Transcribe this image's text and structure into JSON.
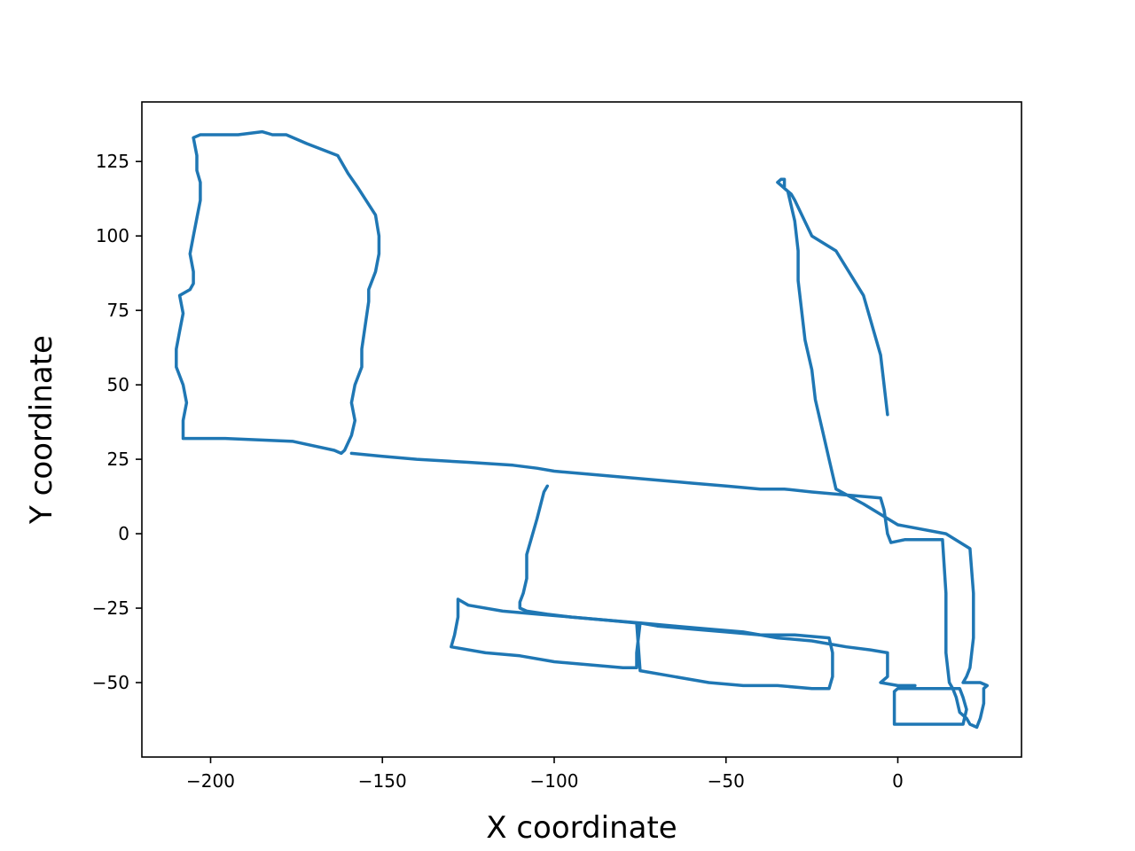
{
  "chart_data": {
    "type": "line",
    "xlabel": "X coordinate",
    "ylabel": "Y coordinate",
    "xlim": [
      -220,
      36
    ],
    "ylim": [
      -75,
      145
    ],
    "x_ticks": [
      -200,
      -150,
      -100,
      -50,
      0
    ],
    "x_tick_labels": [
      "−200",
      "−150",
      "−100",
      "−50",
      "0"
    ],
    "y_ticks": [
      125,
      100,
      75,
      50,
      25,
      0,
      -25,
      -50
    ],
    "y_tick_labels": [
      "125",
      "100",
      "75",
      "50",
      "25",
      "0",
      "−25",
      "−50"
    ],
    "grid": false,
    "series": [
      {
        "color": "#1f77b4",
        "x": [
          -208,
          -208,
          -207,
          -208,
          -210,
          -210,
          -209,
          -208,
          -209,
          -206,
          -205,
          -205,
          -206,
          -205,
          -204,
          -203,
          -203,
          -204,
          -204,
          -205,
          -203,
          -203,
          -202,
          -202,
          -198,
          -192,
          -185,
          -182,
          -181,
          -182,
          -181,
          -181,
          -178,
          -172,
          -163,
          -160,
          -157,
          -152,
          -151,
          -151,
          -152,
          -154,
          -154,
          -155,
          -156,
          -156,
          -158,
          -159,
          -158,
          -159,
          -161,
          -162,
          -164,
          -176,
          -196,
          -208
        ],
        "y": [
          32,
          38,
          44,
          50,
          56,
          62,
          68,
          74,
          80,
          82,
          84,
          88,
          94,
          100,
          106,
          112,
          118,
          122,
          127,
          133,
          134,
          134,
          134,
          134,
          134,
          134,
          135,
          134,
          134,
          134,
          134,
          134,
          134,
          131,
          127,
          121,
          116,
          107,
          100,
          94,
          88,
          82,
          78,
          70,
          62,
          56,
          50,
          44,
          38,
          33,
          28,
          27,
          28,
          31,
          32,
          32
        ]
      },
      {
        "color": "#1f77b4",
        "x": [
          -159,
          -150,
          -140,
          -125,
          -112,
          -105,
          -100,
          -90,
          -80,
          -70,
          -60,
          -50,
          -40,
          -33,
          -25,
          -15,
          -5,
          -4,
          -3,
          -2,
          2,
          10,
          13,
          14,
          14,
          15,
          16,
          17,
          18,
          20,
          21,
          23,
          24,
          25,
          25,
          26,
          24,
          21,
          20,
          19,
          20,
          21,
          22,
          22,
          21,
          14,
          0,
          -10,
          -18,
          -20,
          -22,
          -24,
          -25,
          -27,
          -28,
          -29,
          -29,
          -30,
          -31,
          -32,
          -33,
          -33,
          -34,
          -35,
          -34,
          -31,
          -30,
          -25,
          -18,
          -10,
          -5,
          -3
        ],
        "y": [
          27,
          26,
          25,
          24,
          23,
          22,
          21,
          20,
          19,
          18,
          17,
          16,
          15,
          15,
          14,
          13,
          12,
          8,
          0,
          -3,
          -2,
          -2,
          -2,
          -20,
          -40,
          -50,
          -52,
          -55,
          -60,
          -62,
          -64,
          -65,
          -62,
          -57,
          -52,
          -51,
          -50,
          -50,
          -50,
          -50,
          -48,
          -45,
          -35,
          -20,
          -5,
          0,
          3,
          10,
          15,
          25,
          35,
          45,
          55,
          65,
          75,
          85,
          95,
          105,
          110,
          115,
          116,
          119,
          119,
          118,
          117,
          114,
          112,
          100,
          95,
          80,
          60,
          40
        ]
      },
      {
        "color": "#1f77b4",
        "x": [
          -102,
          -103,
          -105,
          -108,
          -108,
          -109,
          -110,
          -110,
          -108,
          -102,
          -95,
          -85,
          -75,
          -65,
          -55,
          -45,
          -35,
          -25,
          -20,
          -15,
          -8,
          -3,
          -3,
          -5,
          0,
          5
        ],
        "y": [
          16,
          14,
          5,
          -7,
          -15,
          -20,
          -23,
          -25,
          -26,
          -27,
          -28,
          -29,
          -30,
          -31,
          -32,
          -33,
          -35,
          -36,
          -37,
          -38,
          -39,
          -40,
          -48,
          -50,
          -51,
          -51
        ]
      },
      {
        "color": "#1f77b4",
        "x": [
          -128,
          -128,
          -129,
          -130,
          -120,
          -110,
          -100,
          -90,
          -80,
          -76,
          -76,
          -75,
          -70,
          -60,
          -50,
          -40,
          -30,
          -20,
          -19,
          -19,
          -20,
          -25,
          -35,
          -45,
          -55,
          -65,
          -75,
          -76,
          -85,
          -95,
          -105,
          -115,
          -125,
          -128
        ],
        "y": [
          -22,
          -28,
          -34,
          -38,
          -40,
          -41,
          -43,
          -44,
          -45,
          -45,
          -40,
          -30,
          -31,
          -32,
          -33,
          -34,
          -34,
          -35,
          -40,
          -48,
          -52,
          -52,
          -51,
          -51,
          -50,
          -48,
          -46,
          -30,
          -29,
          -28,
          -27,
          -26,
          -24,
          -22
        ]
      },
      {
        "color": "#1f77b4",
        "x": [
          -1,
          -1,
          -1,
          5,
          12,
          19,
          20,
          19,
          18,
          10,
          0,
          -1
        ],
        "y": [
          -53,
          -58,
          -64,
          -64,
          -64,
          -64,
          -59,
          -55,
          -52,
          -52,
          -52,
          -53
        ]
      }
    ]
  }
}
